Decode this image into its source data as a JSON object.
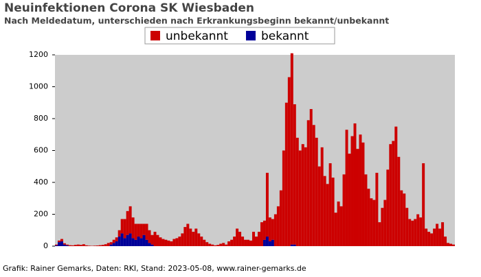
{
  "chart_data": {
    "type": "stacked_bar",
    "title": "Neuinfektionen Corona SK Wiesbaden",
    "subtitle": "Nach Meldedatum, unterschieden nach Erkrankungsbeginn bekannt/unbekannt",
    "footer": "Grafik: Rainer Gemarks, Daten: RKI, Stand: 2023-05-08, www.rainer-gemarks.de",
    "categories": [
      null,
      null,
      null,
      null,
      null,
      null,
      null,
      null,
      null,
      null,
      null,
      null,
      null,
      null,
      null,
      null,
      null,
      null,
      null,
      null,
      null,
      null,
      null,
      null,
      null,
      null,
      null,
      null,
      null,
      null,
      null,
      null,
      null,
      null,
      null,
      null,
      null,
      null,
      null,
      null,
      null,
      null,
      null,
      null,
      null,
      null,
      null,
      null,
      null,
      null,
      null,
      null,
      null,
      null,
      null,
      null,
      null,
      null,
      null,
      null,
      null,
      null,
      null,
      null,
      null,
      null,
      null,
      null,
      null,
      null,
      null,
      null,
      null,
      null,
      null,
      null,
      null,
      null,
      null,
      null,
      null,
      null,
      null,
      null,
      null,
      null,
      null,
      null,
      null,
      null,
      null,
      null,
      null,
      null,
      null,
      null,
      null,
      null,
      null,
      null,
      null,
      null,
      null,
      null,
      null,
      null,
      null,
      null,
      null,
      null,
      null,
      null,
      null,
      null,
      null,
      null,
      null,
      null,
      null,
      null,
      null,
      null,
      null,
      null,
      null,
      null,
      null,
      null,
      null,
      null,
      null,
      null,
      null,
      null,
      null,
      null,
      null,
      null,
      null,
      null,
      null,
      null,
      null,
      null,
      null,
      null
    ],
    "series": [
      {
        "name": "bekannt",
        "color": "#000099",
        "values": [
          5,
          25,
          30,
          10,
          5,
          0,
          0,
          0,
          0,
          0,
          0,
          0,
          0,
          0,
          0,
          0,
          0,
          0,
          0,
          0,
          10,
          20,
          30,
          60,
          80,
          50,
          70,
          80,
          50,
          40,
          60,
          50,
          70,
          40,
          20,
          10,
          0,
          0,
          0,
          0,
          0,
          0,
          0,
          0,
          0,
          0,
          0,
          0,
          0,
          0,
          0,
          0,
          0,
          0,
          0,
          0,
          0,
          0,
          0,
          0,
          0,
          0,
          0,
          0,
          0,
          0,
          0,
          0,
          0,
          0,
          0,
          0,
          0,
          0,
          0,
          0,
          40,
          60,
          30,
          40,
          0,
          0,
          0,
          0,
          0,
          0,
          10,
          10,
          0,
          0,
          0,
          0,
          0,
          0,
          0,
          0,
          0,
          0,
          0,
          0,
          0,
          0,
          0,
          0,
          0,
          0,
          0,
          0,
          0,
          0,
          0,
          0,
          0,
          0,
          0,
          0,
          0,
          0,
          0,
          0,
          0,
          0,
          0,
          0,
          0,
          0,
          0,
          0,
          0,
          0,
          0,
          0,
          0,
          0,
          0,
          0,
          0,
          0,
          0,
          0,
          0,
          0,
          0,
          0,
          0,
          0
        ]
      },
      {
        "name": "unbekannt",
        "color": "#cc0000",
        "values": [
          5,
          10,
          15,
          8,
          5,
          6,
          5,
          8,
          10,
          8,
          12,
          5,
          3,
          2,
          3,
          4,
          6,
          8,
          12,
          20,
          15,
          20,
          25,
          40,
          90,
          120,
          150,
          170,
          130,
          100,
          80,
          90,
          70,
          100,
          80,
          60,
          90,
          70,
          55,
          45,
          40,
          35,
          30,
          45,
          50,
          60,
          80,
          120,
          140,
          110,
          90,
          110,
          80,
          60,
          40,
          25,
          15,
          10,
          5,
          8,
          15,
          20,
          10,
          30,
          40,
          60,
          110,
          90,
          60,
          40,
          40,
          35,
          90,
          60,
          90,
          150,
          120,
          400,
          150,
          130,
          200,
          250,
          350,
          600,
          900,
          1060,
          1200,
          880,
          680,
          600,
          640,
          620,
          790,
          860,
          760,
          680,
          500,
          620,
          440,
          390,
          520,
          430,
          210,
          280,
          250,
          450,
          730,
          580,
          690,
          770,
          610,
          700,
          650,
          450,
          360,
          300,
          290,
          460,
          150,
          240,
          290,
          480,
          640,
          660,
          750,
          560,
          350,
          330,
          240,
          170,
          160,
          170,
          200,
          180,
          520,
          110,
          90,
          80,
          110,
          140,
          110,
          150,
          60,
          20,
          15,
          10
        ]
      }
    ],
    "ylim": [
      0,
      1200
    ],
    "yticks": [
      0,
      200,
      400,
      600,
      800,
      1000,
      1200
    ],
    "grid": false
  }
}
